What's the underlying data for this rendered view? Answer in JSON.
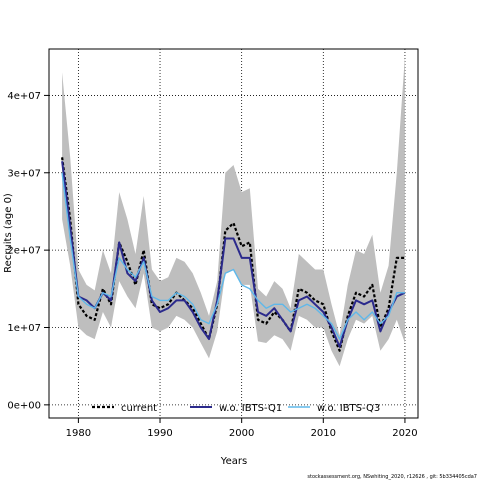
{
  "chart_data": {
    "type": "line",
    "title": "",
    "xlabel": "Years",
    "ylabel": "Recruits (age 0)",
    "xlim": [
      1976.4,
      2021.6
    ],
    "ylim": [
      -1700000,
      46000000
    ],
    "x_ticks": [
      1980,
      1990,
      2000,
      2010,
      2020
    ],
    "x_tick_labels": [
      "1980",
      "1990",
      "2000",
      "2010",
      "2020"
    ],
    "y_ticks": [
      0,
      10000000,
      20000000,
      30000000,
      40000000
    ],
    "y_tick_labels": [
      "0e+00",
      "1e+07",
      "2e+07",
      "3e+07",
      "4e+07"
    ],
    "grid": true,
    "legend_position": "bottom",
    "x": [
      1978,
      1979,
      1980,
      1981,
      1982,
      1983,
      1984,
      1985,
      1986,
      1987,
      1988,
      1989,
      1990,
      1991,
      1992,
      1993,
      1994,
      1995,
      1996,
      1997,
      1998,
      1999,
      2000,
      2001,
      2002,
      2003,
      2004,
      2005,
      2006,
      2007,
      2008,
      2009,
      2010,
      2011,
      2012,
      2013,
      2014,
      2015,
      2016,
      2017,
      2018,
      2019,
      2020
    ],
    "band": {
      "upper": [
        43000000,
        32000000,
        17500000,
        15500000,
        14800000,
        20000000,
        17000000,
        27500000,
        24000000,
        19500000,
        27000000,
        17500000,
        16000000,
        16500000,
        19000000,
        18500000,
        17000000,
        14500000,
        11500000,
        16000000,
        30000000,
        31000000,
        27500000,
        28000000,
        15000000,
        14000000,
        16000000,
        15000000,
        12500000,
        19500000,
        18500000,
        17500000,
        17500000,
        13000000,
        9000000,
        15500000,
        20000000,
        19500000,
        22000000,
        14500000,
        18000000,
        30000000,
        45000000
      ],
      "lower": [
        24000000,
        18000000,
        10000000,
        9000000,
        8500000,
        12000000,
        10000000,
        16000000,
        14000000,
        12500000,
        17000000,
        10000000,
        9500000,
        10000000,
        11500000,
        11000000,
        10000000,
        8000000,
        6000000,
        9500000,
        17000000,
        17500000,
        15500000,
        15500000,
        8200000,
        8000000,
        9000000,
        8500000,
        7000000,
        11500000,
        11000000,
        10000000,
        10000000,
        7000000,
        5000000,
        8500000,
        11000000,
        10500000,
        11500000,
        7000000,
        8500000,
        11000000,
        8000000
      ]
    },
    "series": [
      {
        "name": "current",
        "color": "#000000",
        "values": [
          32000000,
          24000000,
          13000000,
          11500000,
          11000000,
          15000000,
          13000000,
          21000000,
          18500000,
          15500000,
          20000000,
          13000000,
          12500000,
          13000000,
          14500000,
          13500000,
          12500000,
          10500000,
          8500000,
          13000000,
          22500000,
          23500000,
          20500000,
          21000000,
          11000000,
          10500000,
          12000000,
          11000000,
          9500000,
          15000000,
          14500000,
          13500000,
          13000000,
          9500000,
          7000000,
          11500000,
          14500000,
          14000000,
          15500000,
          10000000,
          12500000,
          19000000,
          19000000
        ]
      },
      {
        "name": "w.o. IBTS-Q1",
        "color": "#2b2a8c",
        "values": [
          31500000,
          23000000,
          14000000,
          13500000,
          12500000,
          14500000,
          13500000,
          21000000,
          17000000,
          16000000,
          19000000,
          13500000,
          12000000,
          12500000,
          13500000,
          13500000,
          12000000,
          10000000,
          8500000,
          13500000,
          21500000,
          21500000,
          19000000,
          19000000,
          12000000,
          11500000,
          12500000,
          11000000,
          9500000,
          13500000,
          14000000,
          13000000,
          12000000,
          10000000,
          7500000,
          11000000,
          13500000,
          13000000,
          13500000,
          9500000,
          12000000,
          14000000,
          14500000
        ]
      },
      {
        "name": "w.o. IBTS-Q3",
        "color": "#5fb8ea",
        "values": [
          30000000,
          21500000,
          14000000,
          13000000,
          12500000,
          14500000,
          14000000,
          19000000,
          17500000,
          16500000,
          18500000,
          14000000,
          13500000,
          13500000,
          14500000,
          14000000,
          13000000,
          11000000,
          10500000,
          13000000,
          17000000,
          17500000,
          15500000,
          15000000,
          13500000,
          12500000,
          13000000,
          13000000,
          12000000,
          12500000,
          13000000,
          12500000,
          11500000,
          10500000,
          8500000,
          11000000,
          12000000,
          11000000,
          12000000,
          10500000,
          11500000,
          14500000,
          14500000
        ]
      }
    ]
  },
  "footer": "stockassessment.org, NSwhiting_2020, r12626 , git: 5b334405cda7"
}
